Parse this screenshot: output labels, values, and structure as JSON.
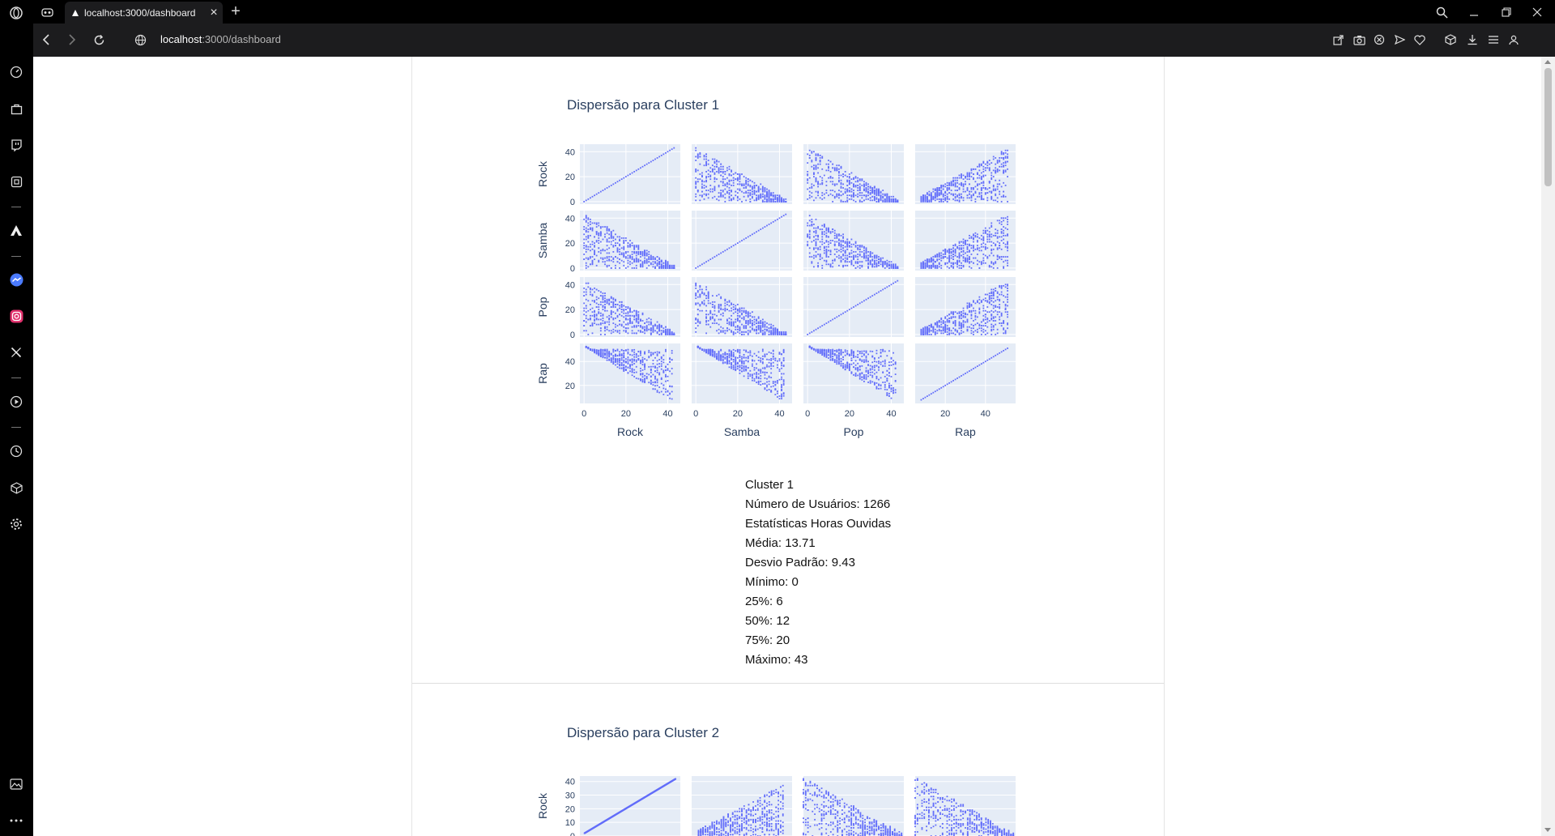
{
  "browser": {
    "tab_title": "localhost:3000/dashboard",
    "url_host": "localhost",
    "url_path": ":3000/dashboard",
    "new_tab_label": "+",
    "close_tab_label": "×"
  },
  "clusters": [
    {
      "title": "Dispersão para Cluster 1",
      "stats": [
        "Cluster 1",
        "Número de Usuários: 1266",
        "Estatísticas Horas Ouvidas",
        "Média: 13.71",
        "Desvio Padrão: 9.43",
        "Mínimo: 0",
        "25%: 6",
        "50%: 12",
        "75%: 20",
        "Máximo: 43"
      ]
    },
    {
      "title": "Dispersão para Cluster 2",
      "stats": []
    }
  ],
  "chart_data": [
    {
      "type": "scatter",
      "subtype": "scatter-matrix",
      "title": "Dispersão para Cluster 1",
      "variables": [
        "Rock",
        "Samba",
        "Pop",
        "Rap"
      ],
      "point_color": "#636efa",
      "background": "#e5ecf6",
      "grid": true,
      "axis_ranges": {
        "Rock": [
          -2,
          46
        ],
        "Samba": [
          -2,
          46
        ],
        "Pop": [
          -2,
          46
        ],
        "Rap": [
          5,
          55
        ]
      },
      "y_ticks": {
        "Rock": [
          0,
          20,
          40
        ],
        "Samba": [
          0,
          20,
          40
        ],
        "Pop": [
          0,
          20,
          40
        ],
        "Rap": [
          20,
          40
        ]
      },
      "x_ticks": {
        "Rock": [
          0,
          20,
          40
        ],
        "Samba": [
          0,
          20,
          40
        ],
        "Pop": [
          0,
          20,
          40
        ],
        "Rap": [
          20,
          40
        ]
      },
      "pair_trend": {
        "Rock-Samba": "negative",
        "Rock-Pop": "negative",
        "Rock-Rap": "positive",
        "Samba-Pop": "negative",
        "Samba-Rap": "positive",
        "Pop-Rap": "positive"
      }
    },
    {
      "type": "scatter",
      "subtype": "scatter-matrix",
      "title": "Dispersão para Cluster 2",
      "variables": [
        "Rock"
      ],
      "point_color": "#636efa",
      "background": "#e5ecf6",
      "grid": true,
      "y_ticks": {
        "Rock": [
          0,
          10,
          20,
          30,
          40
        ]
      },
      "pair_trend": {
        "Rock-Col2": "positive",
        "Rock-Col3": "negative",
        "Rock-Col4": "negative"
      }
    }
  ],
  "icons": {
    "sidebar": [
      "speed-dial-icon",
      "bag-icon",
      "twitch-icon",
      "extensions-icon",
      "aria-icon",
      "messenger-icon",
      "instagram-icon",
      "x-icon",
      "player-icon",
      "history-icon",
      "cube-icon",
      "settings-icon",
      "gallery-icon",
      "more-icon"
    ],
    "toolbar": [
      "back-icon",
      "forward-icon",
      "reload-icon",
      "site-info-icon",
      "share-icon",
      "camera-icon",
      "block-icon",
      "send-icon",
      "heart-icon",
      "box-icon",
      "download-icon",
      "menu-icon",
      "profile-icon"
    ]
  }
}
